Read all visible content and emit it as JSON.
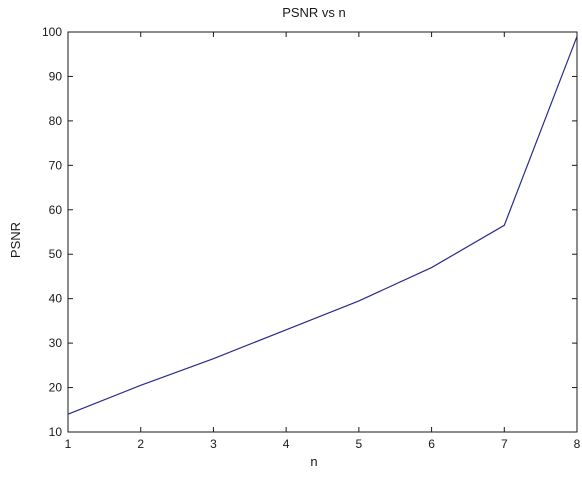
{
  "chart_data": {
    "type": "line",
    "title": "PSNR vs n",
    "xlabel": "n",
    "ylabel": "PSNR",
    "xlim": [
      1,
      8
    ],
    "ylim": [
      10,
      100
    ],
    "xticks": [
      "1",
      "2",
      "3",
      "4",
      "5",
      "6",
      "7",
      "8"
    ],
    "yticks": [
      "10",
      "20",
      "30",
      "40",
      "50",
      "60",
      "70",
      "80",
      "90",
      "100"
    ],
    "grid": false,
    "series": [
      {
        "color": "#2b2b8c",
        "x": [
          1,
          2,
          3,
          4,
          5,
          6,
          7,
          8
        ],
        "y": [
          14,
          20.5,
          26.5,
          33,
          39.5,
          47,
          56.5,
          99
        ]
      }
    ]
  }
}
